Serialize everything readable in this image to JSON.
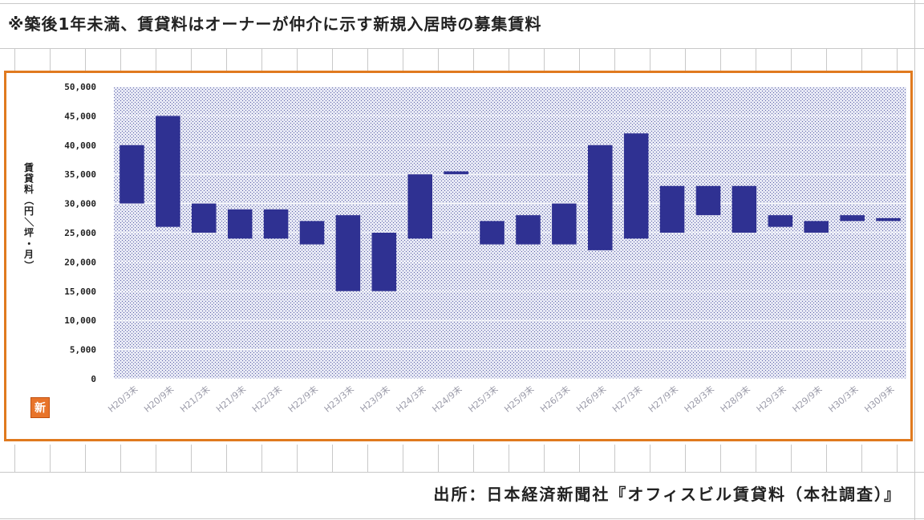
{
  "note": "※築後1年未満、賃貸料はオーナーが仲介に示す新規入居時の募集賃料",
  "source": "出所：日本経済新聞社『オフィスビル賃貸料（本社調査）』",
  "logo_text": "新",
  "colors": {
    "bar": "#2f3192",
    "frame": "#e07a1f",
    "plot_bg": "#d9dcef"
  },
  "chart_data": {
    "type": "bar",
    "subtype": "floating-range",
    "ylabel": "賃貸料（円／坪・月）",
    "ylim": [
      0,
      50000
    ],
    "yticks": [
      "50,000",
      "45,000",
      "40,000",
      "35,000",
      "30,000",
      "25,000",
      "20,000",
      "15,000",
      "10,000",
      "5,000",
      "0"
    ],
    "categories": [
      "H20/3末",
      "H20/9末",
      "H21/3末",
      "H21/9末",
      "H22/3末",
      "H22/9末",
      "H23/3末",
      "H23/9末",
      "H24/3末",
      "H24/9末",
      "H25/3末",
      "H25/9末",
      "H26/3末",
      "H26/9末",
      "H27/3末",
      "H27/9末",
      "H28/3末",
      "H28/9末",
      "H29/3末",
      "H29/9末",
      "H30/3末",
      "H30/9末"
    ],
    "low": [
      30000,
      26000,
      25000,
      24000,
      24000,
      23000,
      15000,
      15000,
      24000,
      35000,
      23000,
      23000,
      23000,
      22000,
      24000,
      25000,
      28000,
      25000,
      26000,
      25000,
      27000,
      27000
    ],
    "high": [
      40000,
      45000,
      30000,
      29000,
      29000,
      27000,
      28000,
      25000,
      35000,
      35500,
      27000,
      28000,
      30000,
      40000,
      42000,
      33000,
      33000,
      33000,
      28000,
      27000,
      28000,
      27500
    ],
    "grid": true,
    "legend": "none"
  }
}
